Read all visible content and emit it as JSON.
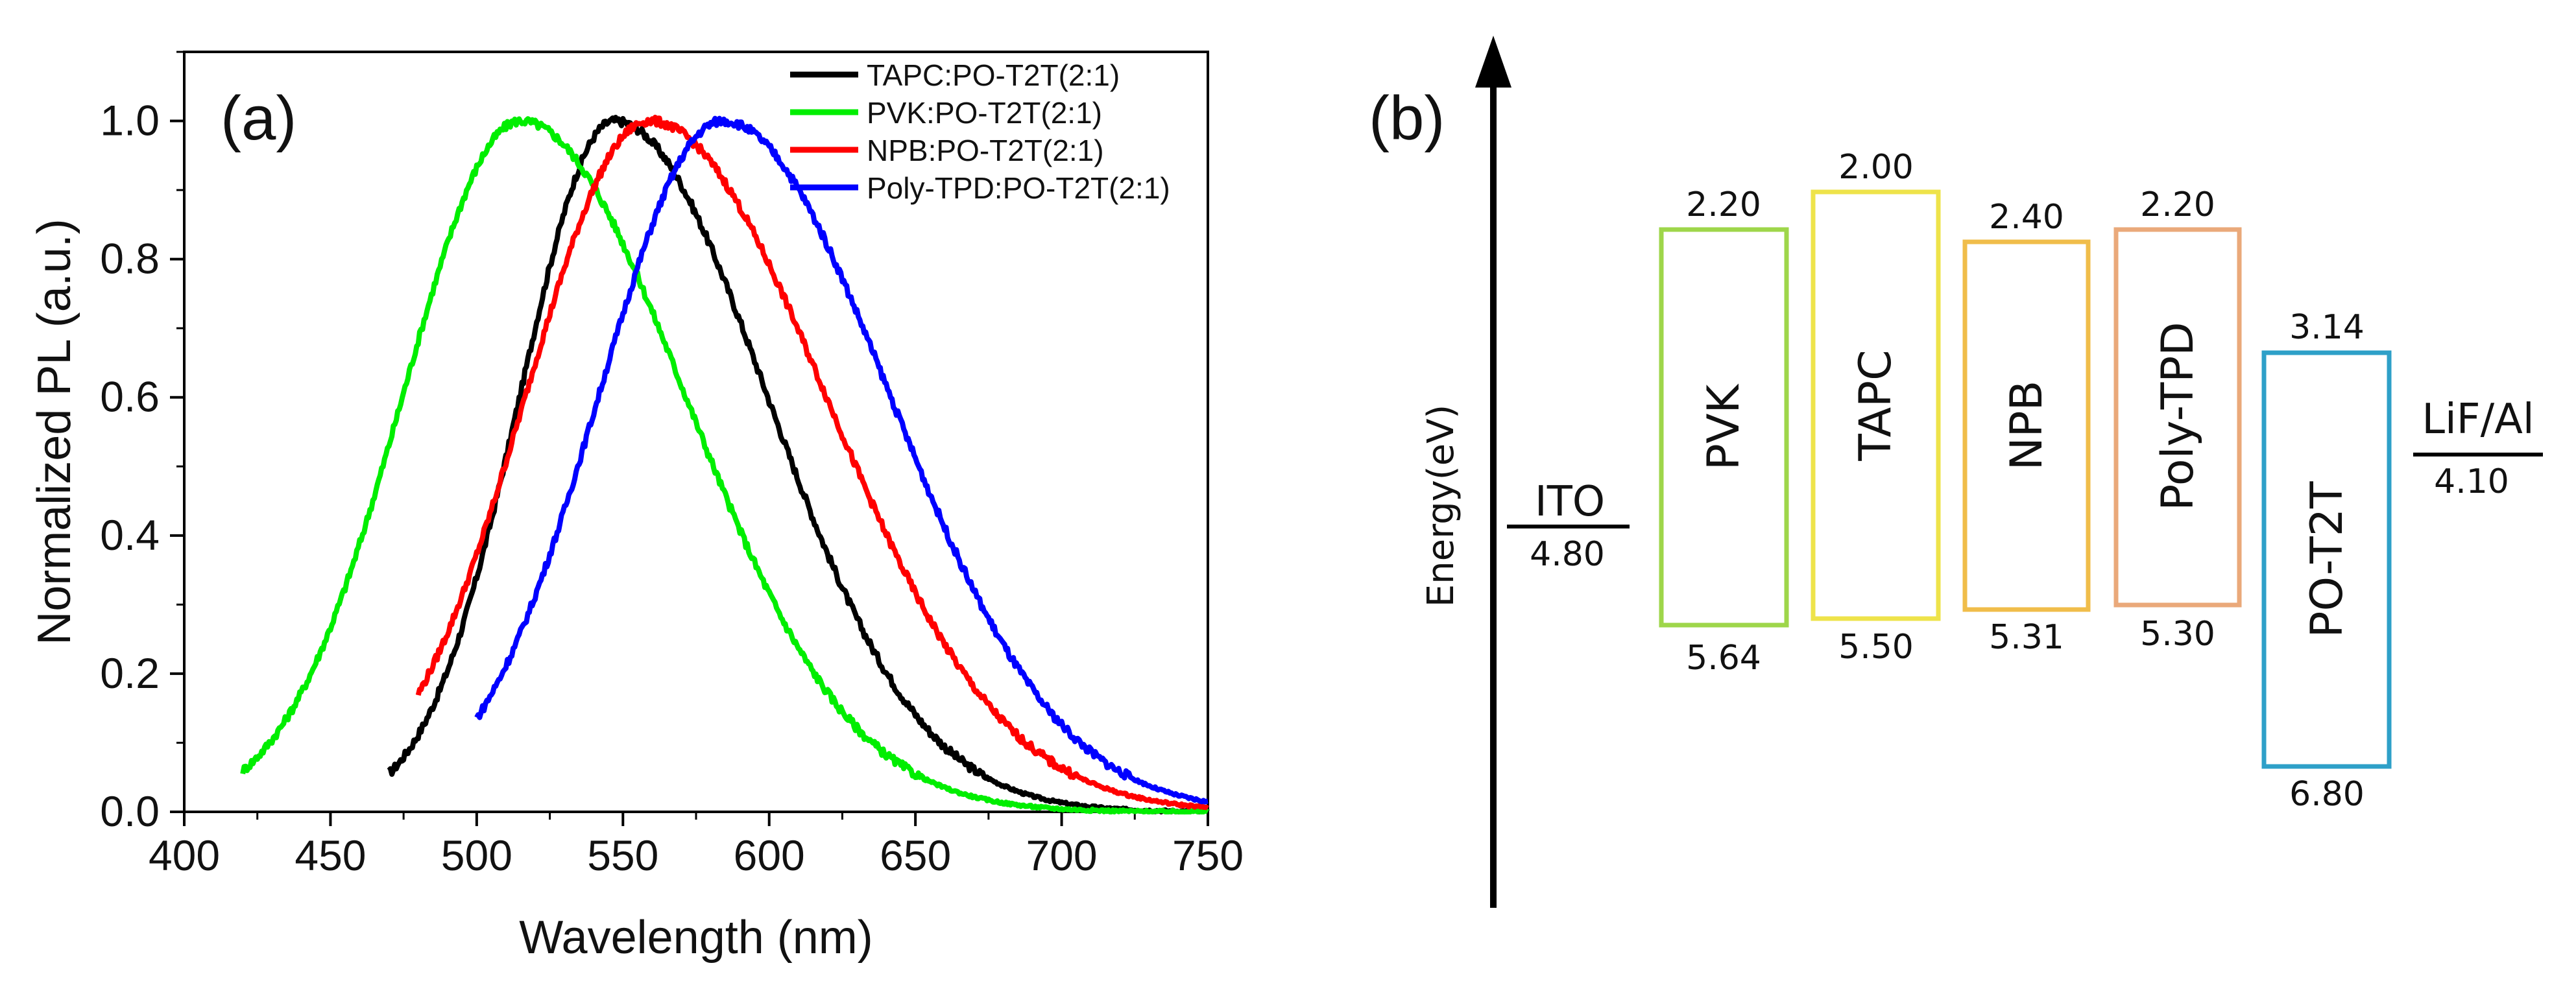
{
  "chart_data": [
    {
      "type": "line",
      "panel_label": "(a)",
      "xlabel": "Wavelength (nm)",
      "ylabel": "Normalized PL (a.u.)",
      "xlim": [
        400,
        750
      ],
      "ylim": [
        0.0,
        1.1
      ],
      "x_ticks": [
        "400",
        "450",
        "500",
        "550",
        "600",
        "650",
        "700",
        "750"
      ],
      "y_ticks": [
        "0.0",
        "0.2",
        "0.4",
        "0.6",
        "0.8",
        "1.0"
      ],
      "legend_position": "top-right",
      "series": [
        {
          "name": "TAPC:PO-T2T(2:1)",
          "color": "#000000",
          "start": 470,
          "peak": 547,
          "sigma_left": 32,
          "sigma_right": 52,
          "end": 750
        },
        {
          "name": "PVK:PO-T2T(2:1)",
          "color": "#00ee00",
          "start": 420,
          "peak": 515,
          "sigma_left": 40,
          "sigma_right": 56,
          "end": 750
        },
        {
          "name": "NPB:PO-T2T(2:1)",
          "color": "#ff0000",
          "start": 480,
          "peak": 559,
          "sigma_left": 42,
          "sigma_right": 60,
          "end": 750
        },
        {
          "name": "Poly-TPD:PO-T2T(2:1)",
          "color": "#0000ff",
          "start": 500,
          "peak": 584,
          "sigma_left": 42,
          "sigma_right": 57,
          "end": 750
        }
      ]
    },
    {
      "type": "energy-level-diagram",
      "panel_label": "(b)",
      "ylabel": "Energy(eV)",
      "electrodes": [
        {
          "name": "ITO",
          "value": "4.80"
        },
        {
          "name": "LiF/Al",
          "value": "4.10"
        }
      ],
      "layers": [
        {
          "name": "PVK",
          "lumo": "2.20",
          "homo": "5.64",
          "color": "#9ed64a"
        },
        {
          "name": "TAPC",
          "lumo": "2.00",
          "homo": "5.50",
          "color": "#eee34a"
        },
        {
          "name": "NPB",
          "lumo": "2.40",
          "homo": "5.31",
          "color": "#f0bd4a"
        },
        {
          "name": "Poly-TPD",
          "lumo": "2.20",
          "homo": "5.30",
          "color": "#eaa97a"
        },
        {
          "name": "PO-T2T",
          "lumo": "3.14",
          "homo": "6.80",
          "color": "#2ea0c8"
        }
      ]
    }
  ]
}
